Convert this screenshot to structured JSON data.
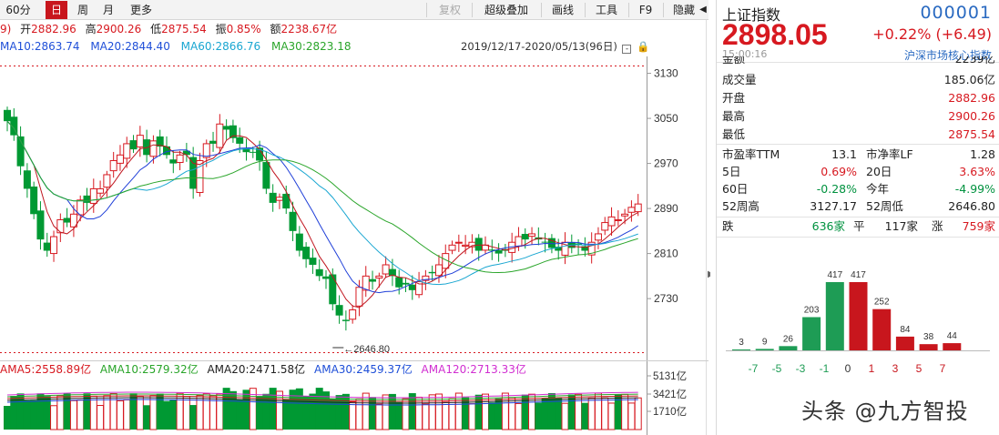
{
  "toolbar": {
    "items": [
      {
        "label": "60分",
        "active": false
      },
      {
        "label": "日",
        "active": true
      },
      {
        "label": "周",
        "active": false
      },
      {
        "label": "月",
        "active": false
      },
      {
        "label": "更多",
        "active": false
      }
    ],
    "right_items": [
      {
        "label": "复权",
        "disabled": true
      },
      {
        "label": "超级叠加",
        "disabled": false
      },
      {
        "label": "画线",
        "disabled": false
      },
      {
        "label": "工具",
        "disabled": false
      },
      {
        "label": "F9",
        "disabled": false
      },
      {
        "label": "隐藏",
        "disabled": false
      }
    ]
  },
  "info": {
    "prefix": "9)",
    "open_label": "开",
    "open": "2882.96",
    "high_label": "高",
    "high": "2900.26",
    "low_label": "低",
    "low": "2875.54",
    "amp_label": "振",
    "amp": "0.85%",
    "amount_label": "额",
    "amount": "2238.67亿"
  },
  "ma": {
    "ma10": "MA10:2863.74",
    "ma20": "MA20:2844.40",
    "ma60": "MA60:2866.76",
    "ma30": "MA30:2823.18"
  },
  "range_text": "2019/12/17-2020/05/13(96日)",
  "low_marker": "2646.80",
  "vol_ma": {
    "ama5": "AMA5:2558.89亿",
    "ama10": "AMA10:2579.32亿",
    "ama20": "AMA20:2471.58亿",
    "ama30": "AMA30:2459.37亿",
    "ama120": "AMA120:2713.33亿"
  },
  "chart_data": {
    "type": "candlestick",
    "price_axis": {
      "ticks": [
        "3130",
        "3050",
        "2970",
        "2890",
        "2810",
        "2730"
      ],
      "range": [
        2630,
        3160
      ]
    },
    "volume_axis": {
      "ticks": [
        "5131亿",
        "3421亿",
        "1710亿"
      ]
    },
    "colors": {
      "up": "#d71920",
      "down": "#009933",
      "ma5": "#c0161f",
      "ma10": "#1f3fd8",
      "ma20": "#19a6d1",
      "ma60": "#2aa52a",
      "ma30": "#d12fd1"
    }
  },
  "panel": {
    "name": "上证指数",
    "code": "000001",
    "price": "2898.05",
    "change": "+0.22% (+6.49)",
    "time": "15:00:16",
    "link": "沪深市场核心指数",
    "rows": [
      {
        "label": "金额",
        "value": "2239亿",
        "color": "black"
      },
      {
        "label": "成交量",
        "value": "185.06亿",
        "color": "black"
      },
      {
        "label": "开盘",
        "value": "2882.96",
        "color": "red"
      },
      {
        "label": "最高",
        "value": "2900.26",
        "color": "red"
      },
      {
        "label": "最低",
        "value": "2875.54",
        "color": "red"
      }
    ],
    "grid": [
      {
        "l1": "市盈率TTM",
        "v1": "13.1",
        "c1": "black",
        "l2": "市净率LF",
        "v2": "1.28",
        "c2": "black"
      },
      {
        "l1": "5日",
        "v1": "0.69%",
        "c1": "red",
        "l2": "20日",
        "v2": "3.63%",
        "c2": "red"
      },
      {
        "l1": "60日",
        "v1": "-0.28%",
        "c1": "green",
        "l2": "今年",
        "v2": "-4.99%",
        "c2": "green"
      },
      {
        "l1": "52周高",
        "v1": "3127.17",
        "c1": "black",
        "l2": "52周低",
        "v2": "2646.80",
        "c2": "black"
      }
    ],
    "breadth": {
      "down_label": "跌",
      "down": "636家",
      "flat_label": "平",
      "flat": "117家",
      "up_label": "涨",
      "up": "759家"
    },
    "distribution": {
      "counts": [
        3,
        9,
        26,
        203,
        417,
        417,
        252,
        84,
        38,
        44
      ],
      "axis_labels": [
        "-7",
        "-5",
        "-3",
        "-1",
        "0",
        "1",
        "3",
        "5",
        "7"
      ]
    }
  },
  "watermark": "头条 @九方智投"
}
